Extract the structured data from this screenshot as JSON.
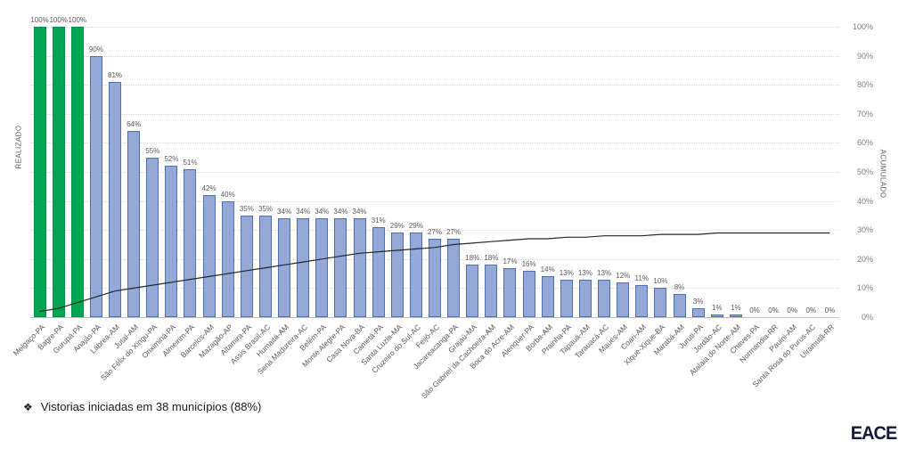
{
  "chart_data": {
    "type": "bar",
    "title": "",
    "left_axis_label": "REALIZADO",
    "right_axis_label": "ACUMULADO",
    "ylim": [
      0,
      100
    ],
    "grid": true,
    "legend": "none",
    "right_axis_ticks": [
      "0%",
      "10%",
      "20%",
      "30%",
      "40%",
      "50%",
      "60%",
      "70%",
      "80%",
      "90%",
      "100%"
    ],
    "categories": [
      "Melgaço-PA",
      "Bagre-PA",
      "Gurupá-PA",
      "Anajás-PA",
      "Lábrea-AM",
      "Jutaí-AM",
      "São Félix do Xingu-PA",
      "Oriximiná-PA",
      "Almeirim-PA",
      "Barcelos-AM",
      "Mazagão-AP",
      "Altamira-PA",
      "Assis Brasil-AC",
      "Humaitá-AM",
      "Sena Madureira-AC",
      "Belém-PA",
      "Monte Alegre-PA",
      "Casa Nova-BA",
      "Cametá-PA",
      "Santa Luzia-MA",
      "Cruzeiro do Sul-AC",
      "Feijó-AC",
      "Jacareacanga-PA",
      "Grajaú-MA",
      "São Gabriel da Cachoeira-AM",
      "Boca do Acre-AM",
      "Alenquer-PA",
      "Borba-AM",
      "Prainha-PA",
      "Tapauá-AM",
      "Tarauacá-AC",
      "Maués-AM",
      "Coari-AM",
      "Xique-Xique-BA",
      "Marabá-AM",
      "Juruti-PA",
      "Jordão-AC",
      "Atalaia do Norte-AM",
      "Chaves-PA",
      "Normandia-RR",
      "Pauini-AM",
      "Santa Rosa do Purus-AC",
      "Uiramutã-RR"
    ],
    "series": [
      {
        "name": "REALIZADO",
        "type": "bar",
        "values": [
          100,
          100,
          100,
          90,
          81,
          64,
          55,
          52,
          51,
          42,
          40,
          35,
          35,
          34,
          34,
          34,
          34,
          34,
          31,
          29,
          29,
          27,
          27,
          18,
          18,
          17,
          16,
          14,
          13,
          13,
          13,
          12,
          11,
          10,
          8,
          3,
          1,
          1,
          0,
          0,
          0,
          0,
          0
        ]
      },
      {
        "name": "ACUMULADO",
        "type": "line",
        "values": [
          2,
          3,
          5,
          7,
          9,
          10,
          11,
          12,
          13,
          14,
          15,
          16,
          17,
          18,
          19,
          20,
          21,
          22,
          22.5,
          23,
          23.5,
          24,
          25,
          25.5,
          26,
          26.5,
          27,
          27,
          27.5,
          27.5,
          28,
          28,
          28,
          28.5,
          28.5,
          28.5,
          29,
          29,
          29,
          29,
          29,
          29,
          29
        ]
      }
    ],
    "colors": {
      "bar_default": "#95A9D9",
      "bar_default_border": "#4D6DB5",
      "bar_highlight": "#00A651",
      "bar_highlight_border": "#00914A",
      "highlight_when_value_equals": 100,
      "line": "#262626",
      "gridline": "#d9d9d9"
    }
  },
  "footer": {
    "bullet": "❖",
    "note": "Vistorias iniciadas em 38 municípios (88%)"
  },
  "logo": {
    "text": "EACE"
  }
}
